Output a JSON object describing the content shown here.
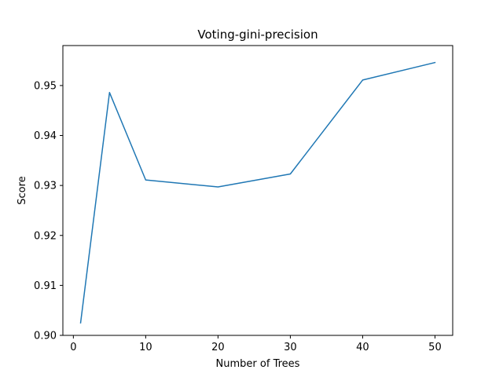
{
  "chart_data": {
    "type": "line",
    "title": "Voting-gini-precision",
    "xlabel": "Number of Trees",
    "ylabel": "Score",
    "xlim": [
      -1.45,
      52.45
    ],
    "ylim": [
      0.9,
      0.958
    ],
    "xticks": [
      0,
      10,
      20,
      30,
      40,
      50
    ],
    "xtick_labels": [
      "0",
      "10",
      "20",
      "30",
      "40",
      "50"
    ],
    "yticks": [
      0.9,
      0.91,
      0.92,
      0.93,
      0.94,
      0.95
    ],
    "ytick_labels": [
      "0.90",
      "0.91",
      "0.92",
      "0.93",
      "0.94",
      "0.95"
    ],
    "grid": false,
    "legend": "none",
    "series": [
      {
        "color": "#1f77b4",
        "x": [
          1,
          5,
          10,
          20,
          30,
          40,
          50
        ],
        "values": [
          0.9025,
          0.9486,
          0.9311,
          0.9297,
          0.9323,
          0.9511,
          0.9546
        ]
      }
    ]
  }
}
